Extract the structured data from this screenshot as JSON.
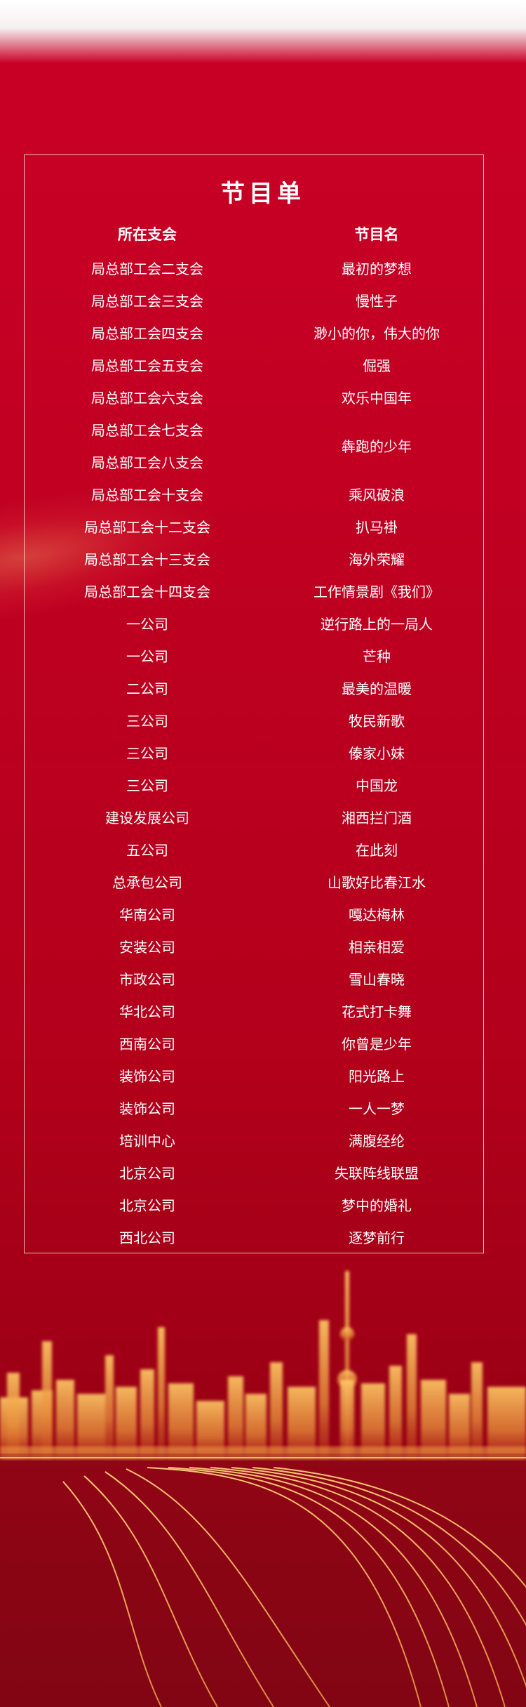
{
  "title": "节目单",
  "headers": {
    "unit": "所在支会",
    "program": "节目名"
  },
  "rows": [
    {
      "unit": "局总部工会二支会",
      "program": "最初的梦想"
    },
    {
      "unit": "局总部工会三支会",
      "program": "慢性子"
    },
    {
      "unit": "局总部工会四支会",
      "program": "渺小的你，伟大的你"
    },
    {
      "unit": "局总部工会五支会",
      "program": "倔强"
    },
    {
      "unit": "局总部工会六支会",
      "program": "欢乐中国年"
    },
    {
      "unit": "局总部工会七支会",
      "program": "犇跑的少年"
    },
    {
      "unit": "局总部工会八支会",
      "program": ""
    },
    {
      "unit": "局总部工会十支会",
      "program": "乘风破浪"
    },
    {
      "unit": "局总部工会十二支会",
      "program": "扒马褂"
    },
    {
      "unit": "局总部工会十三支会",
      "program": "海外荣耀"
    },
    {
      "unit": "局总部工会十四支会",
      "program": "工作情景剧《我们》"
    },
    {
      "unit": "一公司",
      "program": "逆行路上的一局人"
    },
    {
      "unit": "一公司",
      "program": "芒种"
    },
    {
      "unit": "二公司",
      "program": "最美的温暖"
    },
    {
      "unit": "三公司",
      "program": "牧民新歌"
    },
    {
      "unit": "三公司",
      "program": "傣家小妹"
    },
    {
      "unit": "三公司",
      "program": "中国龙"
    },
    {
      "unit": "建设发展公司",
      "program": "湘西拦门酒"
    },
    {
      "unit": "五公司",
      "program": "在此刻"
    },
    {
      "unit": "总承包公司",
      "program": "山歌好比春江水"
    },
    {
      "unit": "华南公司",
      "program": "嘎达梅林"
    },
    {
      "unit": "安装公司",
      "program": "相亲相爱"
    },
    {
      "unit": "市政公司",
      "program": "雪山春晓"
    },
    {
      "unit": "华北公司",
      "program": "花式打卡舞"
    },
    {
      "unit": "西南公司",
      "program": "你曾是少年"
    },
    {
      "unit": "装饰公司",
      "program": "阳光路上"
    },
    {
      "unit": "装饰公司",
      "program": "一人一梦"
    },
    {
      "unit": "培训中心",
      "program": "满腹经纶"
    },
    {
      "unit": "北京公司",
      "program": "失联阵线联盟"
    },
    {
      "unit": "北京公司",
      "program": "梦中的婚礼"
    },
    {
      "unit": "西北公司",
      "program": "逐梦前行"
    }
  ],
  "colors": {
    "background": "#c10022",
    "text": "#ffffff",
    "frame": "#ffdcdc",
    "skyline": "#ffb84d"
  }
}
